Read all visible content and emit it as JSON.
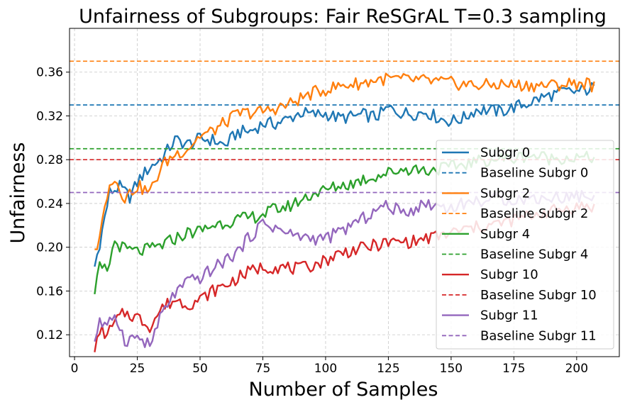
{
  "chart_data": {
    "type": "line",
    "title": "Unfairness of Subgroups: Fair ReSGrAL T=0.3 sampling",
    "xlabel": "Number of Samples",
    "ylabel": "Unfairness",
    "xlim": [
      -2,
      217
    ],
    "ylim": [
      0.1,
      0.4
    ],
    "xticks": [
      0,
      25,
      50,
      75,
      100,
      125,
      150,
      175,
      200
    ],
    "yticks": [
      0.12,
      0.16,
      0.2,
      0.24,
      0.28,
      0.32,
      0.36
    ],
    "ytick_labels": [
      "0.12",
      "0.16",
      "0.20",
      "0.24",
      "0.28",
      "0.32",
      "0.36"
    ],
    "grid": true,
    "legend_position": "right",
    "x_start": 8,
    "x_end": 207,
    "series": [
      {
        "name": "Subgr 0",
        "color": "#1f77b4",
        "style": "solid",
        "shape": [
          [
            8,
            0.182
          ],
          [
            11,
            0.215
          ],
          [
            14,
            0.25
          ],
          [
            18,
            0.255
          ],
          [
            22,
            0.246
          ],
          [
            26,
            0.263
          ],
          [
            30,
            0.273
          ],
          [
            35,
            0.282
          ],
          [
            40,
            0.298
          ],
          [
            45,
            0.294
          ],
          [
            50,
            0.299
          ],
          [
            55,
            0.298
          ],
          [
            60,
            0.293
          ],
          [
            65,
            0.305
          ],
          [
            70,
            0.306
          ],
          [
            75,
            0.313
          ],
          [
            80,
            0.313
          ],
          [
            85,
            0.317
          ],
          [
            90,
            0.323
          ],
          [
            95,
            0.321
          ],
          [
            100,
            0.322
          ],
          [
            105,
            0.318
          ],
          [
            110,
            0.319
          ],
          [
            115,
            0.321
          ],
          [
            120,
            0.319
          ],
          [
            125,
            0.327
          ],
          [
            130,
            0.323
          ],
          [
            135,
            0.322
          ],
          [
            140,
            0.324
          ],
          [
            145,
            0.318
          ],
          [
            150,
            0.315
          ],
          [
            155,
            0.318
          ],
          [
            160,
            0.326
          ],
          [
            165,
            0.325
          ],
          [
            170,
            0.324
          ],
          [
            175,
            0.328
          ],
          [
            180,
            0.331
          ],
          [
            185,
            0.336
          ],
          [
            190,
            0.339
          ],
          [
            195,
            0.342
          ],
          [
            200,
            0.342
          ],
          [
            204,
            0.344
          ],
          [
            207,
            0.346
          ]
        ],
        "amp": 0.006
      },
      {
        "name": "Baseline Subgr 0",
        "color": "#1f77b4",
        "style": "dashed",
        "y": 0.33
      },
      {
        "name": "Subgr 2",
        "color": "#ff7f0e",
        "style": "solid",
        "shape": [
          [
            8,
            0.194
          ],
          [
            11,
            0.222
          ],
          [
            14,
            0.262
          ],
          [
            17,
            0.259
          ],
          [
            20,
            0.245
          ],
          [
            25,
            0.256
          ],
          [
            30,
            0.25
          ],
          [
            35,
            0.275
          ],
          [
            40,
            0.285
          ],
          [
            45,
            0.29
          ],
          [
            50,
            0.302
          ],
          [
            55,
            0.306
          ],
          [
            60,
            0.314
          ],
          [
            65,
            0.322
          ],
          [
            70,
            0.323
          ],
          [
            75,
            0.324
          ],
          [
            80,
            0.327
          ],
          [
            85,
            0.33
          ],
          [
            90,
            0.336
          ],
          [
            95,
            0.341
          ],
          [
            100,
            0.344
          ],
          [
            105,
            0.347
          ],
          [
            110,
            0.349
          ],
          [
            115,
            0.35
          ],
          [
            120,
            0.353
          ],
          [
            125,
            0.354
          ],
          [
            130,
            0.353
          ],
          [
            135,
            0.353
          ],
          [
            140,
            0.352
          ],
          [
            145,
            0.351
          ],
          [
            150,
            0.35
          ],
          [
            155,
            0.349
          ],
          [
            160,
            0.348
          ],
          [
            165,
            0.348
          ],
          [
            170,
            0.349
          ],
          [
            175,
            0.348
          ],
          [
            180,
            0.348
          ],
          [
            185,
            0.348
          ],
          [
            190,
            0.348
          ],
          [
            195,
            0.349
          ],
          [
            200,
            0.35
          ],
          [
            204,
            0.35
          ],
          [
            207,
            0.347
          ]
        ],
        "amp": 0.006
      },
      {
        "name": "Baseline Subgr 2",
        "color": "#ff7f0e",
        "style": "dashed",
        "y": 0.37
      },
      {
        "name": "Subgr 4",
        "color": "#2ca02c",
        "style": "solid",
        "shape": [
          [
            8,
            0.155
          ],
          [
            10,
            0.182
          ],
          [
            13,
            0.178
          ],
          [
            16,
            0.205
          ],
          [
            20,
            0.198
          ],
          [
            25,
            0.196
          ],
          [
            30,
            0.198
          ],
          [
            35,
            0.202
          ],
          [
            40,
            0.208
          ],
          [
            45,
            0.213
          ],
          [
            50,
            0.215
          ],
          [
            55,
            0.22
          ],
          [
            60,
            0.223
          ],
          [
            65,
            0.225
          ],
          [
            70,
            0.227
          ],
          [
            75,
            0.23
          ],
          [
            80,
            0.235
          ],
          [
            85,
            0.237
          ],
          [
            90,
            0.243
          ],
          [
            95,
            0.249
          ],
          [
            100,
            0.252
          ],
          [
            105,
            0.256
          ],
          [
            110,
            0.258
          ],
          [
            115,
            0.262
          ],
          [
            120,
            0.265
          ],
          [
            125,
            0.268
          ],
          [
            130,
            0.271
          ],
          [
            135,
            0.272
          ],
          [
            140,
            0.27
          ],
          [
            145,
            0.272
          ],
          [
            150,
            0.273
          ],
          [
            155,
            0.276
          ],
          [
            160,
            0.278
          ],
          [
            165,
            0.28
          ],
          [
            170,
            0.281
          ],
          [
            175,
            0.281
          ],
          [
            180,
            0.284
          ],
          [
            185,
            0.283
          ],
          [
            190,
            0.281
          ],
          [
            195,
            0.282
          ],
          [
            200,
            0.281
          ],
          [
            207,
            0.282
          ]
        ],
        "amp": 0.006
      },
      {
        "name": "Baseline Subgr 4",
        "color": "#2ca02c",
        "style": "dashed",
        "y": 0.29
      },
      {
        "name": "Subgr 10",
        "color": "#d62728",
        "style": "solid",
        "shape": [
          [
            8,
            0.1
          ],
          [
            10,
            0.125
          ],
          [
            13,
            0.12
          ],
          [
            17,
            0.134
          ],
          [
            20,
            0.14
          ],
          [
            25,
            0.136
          ],
          [
            30,
            0.128
          ],
          [
            35,
            0.145
          ],
          [
            40,
            0.152
          ],
          [
            45,
            0.148
          ],
          [
            50,
            0.152
          ],
          [
            55,
            0.16
          ],
          [
            60,
            0.165
          ],
          [
            65,
            0.172
          ],
          [
            70,
            0.178
          ],
          [
            75,
            0.182
          ],
          [
            80,
            0.182
          ],
          [
            85,
            0.181
          ],
          [
            90,
            0.18
          ],
          [
            95,
            0.184
          ],
          [
            100,
            0.188
          ],
          [
            105,
            0.194
          ],
          [
            110,
            0.197
          ],
          [
            115,
            0.199
          ],
          [
            120,
            0.202
          ],
          [
            125,
            0.204
          ],
          [
            130,
            0.205
          ],
          [
            135,
            0.205
          ],
          [
            140,
            0.208
          ],
          [
            145,
            0.21
          ],
          [
            150,
            0.213
          ],
          [
            155,
            0.216
          ],
          [
            160,
            0.218
          ],
          [
            165,
            0.22
          ],
          [
            170,
            0.222
          ],
          [
            175,
            0.225
          ],
          [
            180,
            0.228
          ],
          [
            185,
            0.231
          ],
          [
            190,
            0.233
          ],
          [
            195,
            0.235
          ],
          [
            200,
            0.237
          ],
          [
            207,
            0.237
          ]
        ],
        "amp": 0.006
      },
      {
        "name": "Baseline Subgr 10",
        "color": "#d62728",
        "style": "dashed",
        "y": 0.28
      },
      {
        "name": "Subgr 11",
        "color": "#9467bd",
        "style": "solid",
        "shape": [
          [
            8,
            0.115
          ],
          [
            10,
            0.132
          ],
          [
            13,
            0.125
          ],
          [
            16,
            0.14
          ],
          [
            20,
            0.115
          ],
          [
            25,
            0.118
          ],
          [
            30,
            0.11
          ],
          [
            35,
            0.14
          ],
          [
            40,
            0.158
          ],
          [
            45,
            0.168
          ],
          [
            50,
            0.172
          ],
          [
            55,
            0.18
          ],
          [
            60,
            0.188
          ],
          [
            65,
            0.196
          ],
          [
            70,
            0.21
          ],
          [
            75,
            0.222
          ],
          [
            80,
            0.218
          ],
          [
            85,
            0.212
          ],
          [
            90,
            0.21
          ],
          [
            95,
            0.208
          ],
          [
            100,
            0.208
          ],
          [
            105,
            0.213
          ],
          [
            110,
            0.22
          ],
          [
            115,
            0.226
          ],
          [
            120,
            0.234
          ],
          [
            125,
            0.238
          ],
          [
            130,
            0.232
          ],
          [
            135,
            0.235
          ],
          [
            140,
            0.24
          ],
          [
            145,
            0.238
          ],
          [
            150,
            0.236
          ],
          [
            155,
            0.24
          ],
          [
            160,
            0.242
          ],
          [
            165,
            0.243
          ],
          [
            170,
            0.244
          ],
          [
            175,
            0.244
          ],
          [
            180,
            0.244
          ],
          [
            185,
            0.245
          ],
          [
            190,
            0.245
          ],
          [
            195,
            0.246
          ],
          [
            200,
            0.247
          ],
          [
            207,
            0.246
          ]
        ],
        "amp": 0.006
      },
      {
        "name": "Baseline Subgr 11",
        "color": "#9467bd",
        "style": "dashed",
        "y": 0.25
      }
    ]
  }
}
